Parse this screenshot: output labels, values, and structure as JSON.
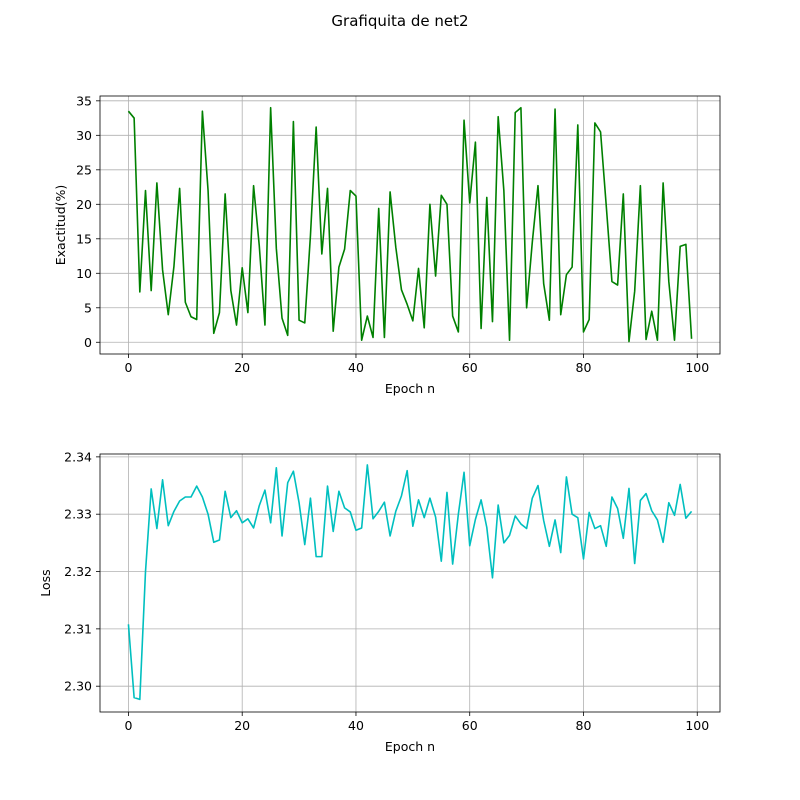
{
  "figure": {
    "title": "Grafiquita de net2"
  },
  "chart_data": [
    {
      "type": "line",
      "xlabel": "Epoch n",
      "ylabel": "Exactitud(%)",
      "xlim": [
        -5,
        104
      ],
      "ylim": [
        -1.7,
        35.7
      ],
      "xticks": [
        0,
        20,
        40,
        60,
        80,
        100
      ],
      "yticks": [
        0,
        5,
        10,
        15,
        20,
        25,
        30,
        35
      ],
      "ytick_labels": [
        "0",
        "5",
        "10",
        "15",
        "20",
        "25",
        "30",
        "35"
      ],
      "grid": true,
      "color": "#008000",
      "series": [
        {
          "x": [
            0,
            1,
            2,
            3,
            4,
            5,
            6,
            7,
            8,
            9,
            10,
            11,
            12,
            13,
            14,
            15,
            16,
            17,
            18,
            19,
            20,
            21,
            22,
            23,
            24,
            25,
            26,
            27,
            28,
            29,
            30,
            31,
            32,
            33,
            34,
            35,
            36,
            37,
            38,
            39,
            40,
            41,
            42,
            43,
            44,
            45,
            46,
            47,
            48,
            49,
            50,
            51,
            52,
            53,
            54,
            55,
            56,
            57,
            58,
            59,
            60,
            61,
            62,
            63,
            64,
            65,
            66,
            67,
            68,
            69,
            70,
            71,
            72,
            73,
            74,
            75,
            76,
            77,
            78,
            79,
            80,
            81,
            82,
            83,
            84,
            85,
            86,
            87,
            88,
            89,
            90,
            91,
            92,
            93,
            94,
            95,
            96,
            97,
            98,
            99
          ],
          "values": [
            33.5,
            32.5,
            7.3,
            22.0,
            7.5,
            23.1,
            10.5,
            4.0,
            11.0,
            22.3,
            5.8,
            3.7,
            3.3,
            33.5,
            22.0,
            1.3,
            4.3,
            21.5,
            7.5,
            2.5,
            10.8,
            4.3,
            22.7,
            14.0,
            2.5,
            34.0,
            13.6,
            3.5,
            1.0,
            32.0,
            3.2,
            2.8,
            15.5,
            31.2,
            12.8,
            22.3,
            1.6,
            10.9,
            13.5,
            22.0,
            21.2,
            0.3,
            3.8,
            0.7,
            19.4,
            0.7,
            21.8,
            13.8,
            7.6,
            5.5,
            3.1,
            10.7,
            2.1,
            20.0,
            9.6,
            21.3,
            20.0,
            3.8,
            1.5,
            32.2,
            20.2,
            29.0,
            2.0,
            21.0,
            3.0,
            32.7,
            22.0,
            0.3,
            33.3,
            34.0,
            5.0,
            14.5,
            22.7,
            8.5,
            3.2,
            33.8,
            4.0,
            9.8,
            10.9,
            31.5,
            1.5,
            3.3,
            31.8,
            30.5,
            19.8,
            8.8,
            8.3,
            21.5,
            0.1,
            7.4,
            22.7,
            0.4,
            4.5,
            0.3,
            23.1,
            8.8,
            0.3,
            13.9,
            14.2,
            0.5
          ]
        }
      ]
    },
    {
      "type": "line",
      "xlabel": "Epoch n",
      "ylabel": "Loss",
      "xlim": [
        -5,
        104
      ],
      "ylim": [
        2.2955,
        2.3405
      ],
      "xticks": [
        0,
        20,
        40,
        60,
        80,
        100
      ],
      "yticks": [
        2.3,
        2.31,
        2.32,
        2.33,
        2.34
      ],
      "ytick_labels": [
        "2.30",
        "2.31",
        "2.32",
        "2.33",
        "2.34"
      ],
      "grid": true,
      "color": "#00bfbf",
      "series": [
        {
          "x": [
            0,
            1,
            2,
            3,
            4,
            5,
            6,
            7,
            8,
            9,
            10,
            11,
            12,
            13,
            14,
            15,
            16,
            17,
            18,
            19,
            20,
            21,
            22,
            23,
            24,
            25,
            26,
            27,
            28,
            29,
            30,
            31,
            32,
            33,
            34,
            35,
            36,
            37,
            38,
            39,
            40,
            41,
            42,
            43,
            44,
            45,
            46,
            47,
            48,
            49,
            50,
            51,
            52,
            53,
            54,
            55,
            56,
            57,
            58,
            59,
            60,
            61,
            62,
            63,
            64,
            65,
            66,
            67,
            68,
            69,
            70,
            71,
            72,
            73,
            74,
            75,
            76,
            77,
            78,
            79,
            80,
            81,
            82,
            83,
            84,
            85,
            86,
            87,
            88,
            89,
            90,
            91,
            92,
            93,
            94,
            95,
            96,
            97,
            98,
            99
          ],
          "values": [
            2.3108,
            2.298,
            2.2977,
            2.32,
            2.3344,
            2.3275,
            2.336,
            2.328,
            2.3305,
            2.3323,
            2.333,
            2.333,
            2.3349,
            2.333,
            2.33,
            2.3251,
            2.3255,
            2.334,
            2.3294,
            2.3306,
            2.3285,
            2.3292,
            2.3276,
            2.3315,
            2.3342,
            2.3285,
            2.3381,
            2.3262,
            2.3355,
            2.3375,
            2.332,
            2.3247,
            2.3328,
            2.3226,
            2.3226,
            2.3349,
            2.327,
            2.334,
            2.3311,
            2.3304,
            2.3272,
            2.3276,
            2.3386,
            2.3292,
            2.3305,
            2.3321,
            2.3262,
            2.3305,
            2.3332,
            2.3376,
            2.3279,
            2.3325,
            2.3294,
            2.3328,
            2.3295,
            2.3218,
            2.3338,
            2.3213,
            2.33,
            2.3373,
            2.3245,
            2.3291,
            2.3325,
            2.3277,
            2.3189,
            2.3316,
            2.325,
            2.3263,
            2.3297,
            2.3283,
            2.3275,
            2.3328,
            2.335,
            2.3289,
            2.3244,
            2.329,
            2.3233,
            2.3365,
            2.33,
            2.3294,
            2.3222,
            2.3303,
            2.3275,
            2.328,
            2.3244,
            2.333,
            2.331,
            2.3258,
            2.3345,
            2.3214,
            2.3324,
            2.3336,
            2.3306,
            2.329,
            2.3251,
            2.332,
            2.3298,
            2.3352,
            2.3293,
            2.3305
          ]
        }
      ]
    }
  ]
}
